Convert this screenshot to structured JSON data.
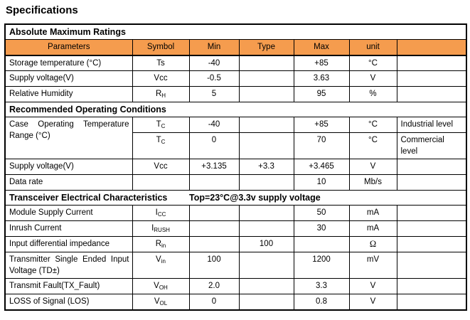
{
  "title": "Specifications",
  "colors": {
    "header_bg": "#F59C4E",
    "border": "#000000",
    "text": "#000000"
  },
  "table": {
    "columns": [
      "Parameters",
      "Symbol",
      "Min",
      "Type",
      "Max",
      "unit",
      ""
    ],
    "rows": [
      {
        "type": "section",
        "label": "Absolute Maximum Ratings"
      },
      {
        "type": "columns"
      },
      {
        "type": "data",
        "param": "Storage temperature (°C)",
        "sym": {
          "base": "Ts",
          "sub": ""
        },
        "min": "-40",
        "typ": "",
        "max": "+85",
        "unit": "°C",
        "note": ""
      },
      {
        "type": "data",
        "param": "Supply voltage(V)",
        "sym": {
          "base": "Vcc",
          "sub": ""
        },
        "min": "-0.5",
        "typ": "",
        "max": "3.63",
        "unit": "V",
        "note": ""
      },
      {
        "type": "data",
        "param": "Relative Humidity",
        "sym": {
          "base": "R",
          "sub": "H"
        },
        "min": "5",
        "typ": "",
        "max": "95",
        "unit": "%",
        "note": ""
      },
      {
        "type": "section",
        "label": "Recommended Operating Conditions"
      },
      {
        "type": "data",
        "param": "Case Operating Temperature Range (°C)",
        "param_rowspan": 2,
        "justify": true,
        "sym": {
          "base": "T",
          "sub": "C"
        },
        "min": "-40",
        "typ": "",
        "max": "+85",
        "unit": "°C",
        "note": "Industrial level"
      },
      {
        "type": "data",
        "no_param": true,
        "sym": {
          "base": "T",
          "sub": "C"
        },
        "min": "0",
        "typ": "",
        "max": "70",
        "unit": "°C",
        "note": "Commercial level",
        "tall": true
      },
      {
        "type": "data",
        "param": "Supply voltage(V)",
        "sym": {
          "base": "Vcc",
          "sub": ""
        },
        "min": "+3.135",
        "typ": "+3.3",
        "max": "+3.465",
        "unit": "V",
        "note": ""
      },
      {
        "type": "data",
        "param": "Data rate",
        "sym": null,
        "min": "",
        "typ": "",
        "max": "10",
        "unit": "Mb/s",
        "note": ""
      },
      {
        "type": "section2",
        "label": "Transceiver Electrical Characteristics",
        "condition": "Top=23°C@3.3v supply voltage"
      },
      {
        "type": "data",
        "param": "Module Supply Current",
        "sym": {
          "base": "I",
          "sub": "CC"
        },
        "min": "",
        "typ": "",
        "max": "50",
        "unit": "mA",
        "note": ""
      },
      {
        "type": "data",
        "param": "Inrush Current",
        "sym": {
          "base": "I",
          "sub": "RUSH"
        },
        "min": "",
        "typ": "",
        "max": "30",
        "unit": "mA",
        "note": ""
      },
      {
        "type": "data",
        "param": "Input differential impedance",
        "sym": {
          "base": "R",
          "sub": "in"
        },
        "min": "",
        "typ": "100",
        "max": "",
        "unit": "Ω",
        "note": ""
      },
      {
        "type": "data",
        "param": "Transmitter Single Ended Input Voltage (TD±)",
        "justify": true,
        "sym": {
          "base": "V",
          "sub": "in"
        },
        "min": "100",
        "typ": "",
        "max": "1200",
        "unit": "mV",
        "note": "",
        "tall": true
      },
      {
        "type": "data",
        "param": "Transmit Fault(TX_Fault)",
        "sym": {
          "base": "V",
          "sub": "OH"
        },
        "min": "2.0",
        "typ": "",
        "max": "3.3",
        "unit": "V",
        "note": ""
      },
      {
        "type": "data",
        "param": "LOSS of Signal (LOS)",
        "sym": {
          "base": "V",
          "sub": "OL"
        },
        "min": "0",
        "typ": "",
        "max": "0.8",
        "unit": "V",
        "note": ""
      }
    ]
  }
}
